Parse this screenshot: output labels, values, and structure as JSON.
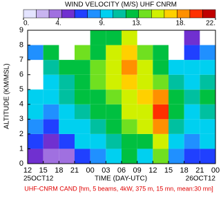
{
  "chart_data": {
    "type": "heatmap",
    "title": "WIND VELOCITY (M/S) UHF CNRM",
    "xlabel": "TIME (DAY-UTC)",
    "ylabel": "ALTITUDE (KM/MSL)",
    "start_date": "25OCT12",
    "end_date": "26OCT12",
    "footer": "UHF-CNRM CAND [hm, 5 beams, 4kW, 375 m, 15 mn, mean:30 mn]",
    "colorscale": [
      "#e4e4ff",
      "#c8b4f0",
      "#a070e0",
      "#7030d0",
      "#2040ff",
      "#2090ff",
      "#00d0f0",
      "#00c0a0",
      "#00c040",
      "#70e020",
      "#d0f000",
      "#ffd000",
      "#ff9000",
      "#ff3000",
      "#c00000"
    ],
    "zlim": [
      0,
      22
    ],
    "zticks": [
      {
        "value": 0,
        "label": "0."
      },
      {
        "value": 4,
        "label": "4."
      },
      {
        "value": 9,
        "label": "9."
      },
      {
        "value": 13,
        "label": "13."
      },
      {
        "value": 18,
        "label": "18."
      },
      {
        "value": 22,
        "label": "22."
      }
    ],
    "xlim": [
      0,
      36
    ],
    "xticks": [
      {
        "value": 0,
        "label": "12"
      },
      {
        "value": 3,
        "label": "15"
      },
      {
        "value": 6,
        "label": "18"
      },
      {
        "value": 9,
        "label": "21"
      },
      {
        "value": 12,
        "label": "00"
      },
      {
        "value": 15,
        "label": "03"
      },
      {
        "value": 18,
        "label": "06"
      },
      {
        "value": 21,
        "label": "09"
      },
      {
        "value": 24,
        "label": "12"
      },
      {
        "value": 27,
        "label": "15"
      },
      {
        "value": 30,
        "label": "18"
      },
      {
        "value": 33,
        "label": "21"
      },
      {
        "value": 36,
        "label": "00"
      }
    ],
    "ylim": [
      0,
      9
    ],
    "yticks": [
      0,
      1,
      2,
      3,
      4,
      5,
      6,
      7,
      8,
      9
    ],
    "x": [
      1.5,
      4.5,
      7.5,
      10.5,
      13.5,
      16.5,
      19.5,
      22.5,
      25.5,
      28.5,
      31.5,
      34.5
    ],
    "y": [
      0.5,
      1.5,
      2.5,
      3.5,
      4.5,
      5.5,
      6.5,
      7.5,
      8.5
    ],
    "values": [
      [
        5,
        4,
        3,
        6,
        8,
        9,
        12,
        10,
        14,
        8,
        6,
        7
      ],
      [
        6,
        5,
        7,
        9,
        10,
        11,
        13,
        12,
        15,
        10,
        8,
        9
      ],
      [
        8,
        7,
        9,
        10,
        11,
        12,
        14,
        15,
        19,
        11,
        9,
        10
      ],
      [
        9,
        8,
        10,
        11,
        12,
        13,
        15,
        16,
        20,
        12,
        10,
        11
      ],
      [
        10,
        9,
        11,
        12,
        13,
        14,
        16,
        17,
        18,
        12,
        11,
        12
      ],
      [
        null,
        10,
        11,
        12,
        14,
        15,
        17,
        16,
        14,
        11,
        10,
        11
      ],
      [
        null,
        11,
        12,
        13,
        14,
        16,
        18,
        15,
        13,
        10,
        9,
        10
      ],
      [
        8,
        12,
        null,
        14,
        13,
        15,
        17,
        14,
        12,
        null,
        7,
        8
      ],
      [
        null,
        null,
        null,
        null,
        12,
        13,
        16,
        null,
        null,
        null,
        5,
        null
      ]
    ]
  }
}
